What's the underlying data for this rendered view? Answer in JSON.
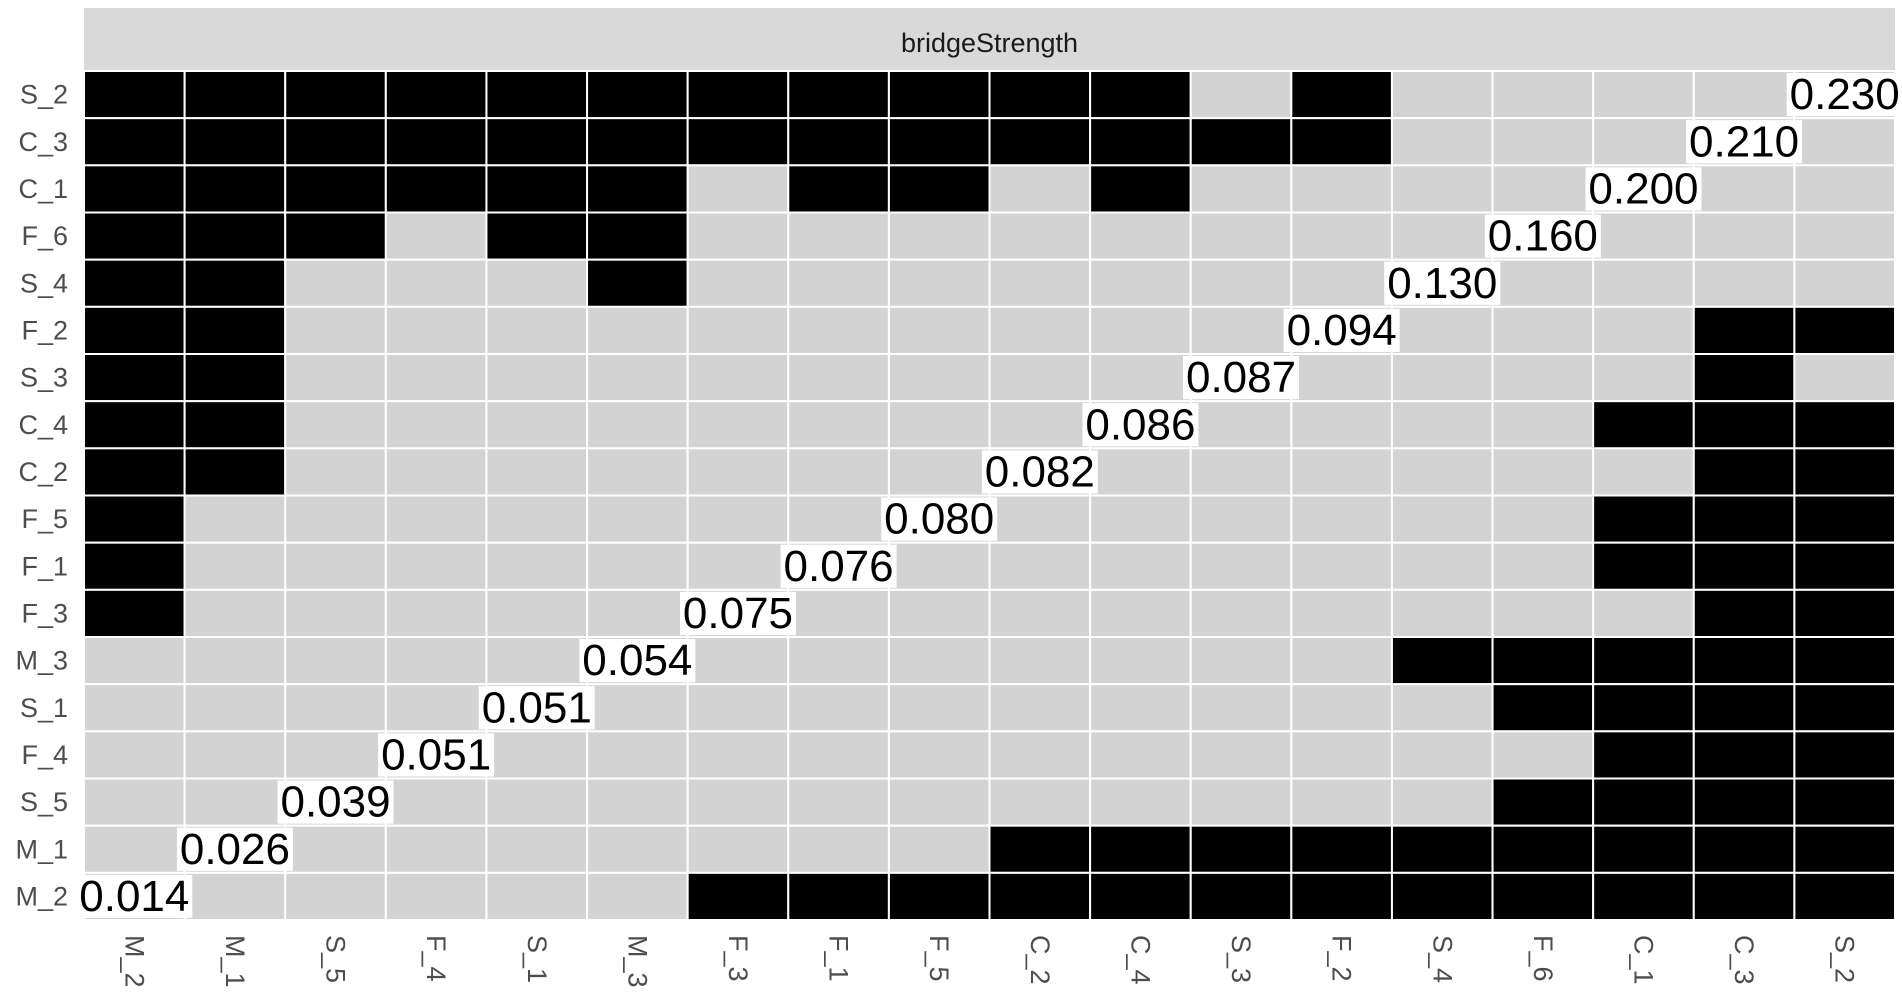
{
  "chart_data": {
    "type": "heatmap",
    "title": "",
    "facet_label": "bridgeStrength",
    "xlabel": "",
    "ylabel": "",
    "grid": true,
    "legend": "none",
    "colors": {
      "significant": "#000000",
      "nonsignificant": "#d3d3d3",
      "strip": "#d9d9d9",
      "gridline": "#ffffff",
      "diag_label_bg": "#ffffff",
      "tick_text": "#4d4d4d"
    },
    "x_categories": [
      "M_2",
      "M_1",
      "S_5",
      "F_4",
      "S_1",
      "M_3",
      "F_3",
      "F_1",
      "F_5",
      "C_2",
      "C_4",
      "S_3",
      "F_2",
      "S_4",
      "F_6",
      "C_1",
      "C_3",
      "S_2"
    ],
    "y_categories": [
      "S_2",
      "C_3",
      "C_1",
      "F_6",
      "S_4",
      "F_2",
      "S_3",
      "C_4",
      "C_2",
      "F_5",
      "F_1",
      "F_3",
      "M_3",
      "S_1",
      "F_4",
      "S_5",
      "M_1",
      "M_2"
    ],
    "diagonal_values": [
      "0.014",
      "0.026",
      "0.039",
      "0.051",
      "0.051",
      "0.054",
      "0.075",
      "0.076",
      "0.080",
      "0.082",
      "0.086",
      "0.087",
      "0.094",
      "0.130",
      "0.160",
      "0.200",
      "0.210",
      "0.230"
    ],
    "significance_matrix": [
      [
        1,
        1,
        1,
        1,
        1,
        1,
        1,
        1,
        1,
        1,
        1,
        0,
        1,
        0,
        0,
        0,
        0,
        0
      ],
      [
        1,
        1,
        1,
        1,
        1,
        1,
        1,
        1,
        1,
        1,
        1,
        1,
        1,
        0,
        0,
        0,
        0,
        0
      ],
      [
        1,
        1,
        1,
        1,
        1,
        1,
        0,
        1,
        1,
        0,
        1,
        0,
        0,
        0,
        0,
        0,
        0,
        0
      ],
      [
        1,
        1,
        1,
        0,
        1,
        1,
        0,
        0,
        0,
        0,
        0,
        0,
        0,
        0,
        0,
        0,
        0,
        0
      ],
      [
        1,
        1,
        0,
        0,
        0,
        1,
        0,
        0,
        0,
        0,
        0,
        0,
        0,
        0,
        0,
        0,
        0,
        0
      ],
      [
        1,
        1,
        0,
        0,
        0,
        0,
        0,
        0,
        0,
        0,
        0,
        0,
        0,
        0,
        0,
        0,
        1,
        1
      ],
      [
        1,
        1,
        0,
        0,
        0,
        0,
        0,
        0,
        0,
        0,
        0,
        0,
        0,
        0,
        0,
        0,
        1,
        0
      ],
      [
        1,
        1,
        0,
        0,
        0,
        0,
        0,
        0,
        0,
        0,
        0,
        0,
        0,
        0,
        0,
        1,
        1,
        1
      ],
      [
        1,
        1,
        0,
        0,
        0,
        0,
        0,
        0,
        0,
        0,
        0,
        0,
        0,
        0,
        0,
        0,
        1,
        1
      ],
      [
        1,
        0,
        0,
        0,
        0,
        0,
        0,
        0,
        0,
        0,
        0,
        0,
        0,
        0,
        0,
        1,
        1,
        1
      ],
      [
        1,
        0,
        0,
        0,
        0,
        0,
        0,
        0,
        0,
        0,
        0,
        0,
        0,
        0,
        0,
        1,
        1,
        1
      ],
      [
        1,
        0,
        0,
        0,
        0,
        0,
        0,
        0,
        0,
        0,
        0,
        0,
        0,
        0,
        0,
        0,
        1,
        1
      ],
      [
        0,
        0,
        0,
        0,
        0,
        0,
        0,
        0,
        0,
        0,
        0,
        0,
        0,
        1,
        1,
        1,
        1,
        1
      ],
      [
        0,
        0,
        0,
        0,
        0,
        0,
        0,
        0,
        0,
        0,
        0,
        0,
        0,
        0,
        1,
        1,
        1,
        1
      ],
      [
        0,
        0,
        0,
        0,
        0,
        0,
        0,
        0,
        0,
        0,
        0,
        0,
        0,
        0,
        0,
        1,
        1,
        1
      ],
      [
        0,
        0,
        0,
        0,
        0,
        0,
        0,
        0,
        0,
        0,
        0,
        0,
        0,
        0,
        1,
        1,
        1,
        1
      ],
      [
        0,
        0,
        0,
        0,
        0,
        0,
        0,
        0,
        0,
        1,
        1,
        1,
        1,
        1,
        1,
        1,
        1,
        1
      ],
      [
        0,
        0,
        0,
        0,
        0,
        0,
        1,
        1,
        1,
        1,
        1,
        1,
        1,
        1,
        1,
        1,
        1,
        1
      ]
    ]
  }
}
